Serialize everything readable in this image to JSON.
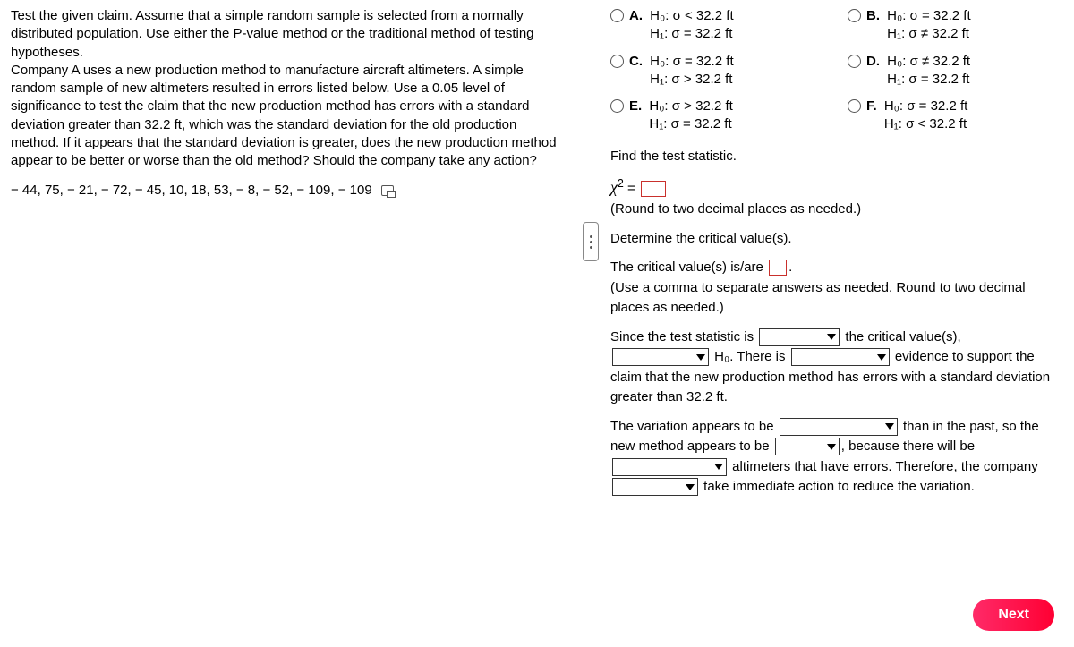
{
  "prompt": {
    "p1": "Test the given claim. Assume that a simple random sample is selected from a normally distributed population. Use either the P-value method or the traditional method of testing hypotheses.",
    "p2": "Company A uses a new production method to manufacture aircraft altimeters. A simple random sample of new altimeters resulted in errors listed below. Use a 0.05 level of significance to test the claim that the new production method has errors with a standard deviation greater than 32.2 ft, which was the standard deviation for the old production method. If it appears that the standard deviation is greater, does the new production method appear to be better or worse than the old method? Should the company take any action?",
    "data": "− 44,  75,  − 21,  − 72,  − 45,  10,  18,  53,  − 8,  − 52,  − 109,  − 109"
  },
  "options": {
    "A": {
      "h0": "H₀: σ < 32.2 ft",
      "h1": "H₁: σ = 32.2 ft"
    },
    "B": {
      "h0": "H₀: σ = 32.2 ft",
      "h1": "H₁: σ ≠ 32.2 ft"
    },
    "C": {
      "h0": "H₀: σ = 32.2 ft",
      "h1": "H₁: σ > 32.2 ft"
    },
    "D": {
      "h0": "H₀: σ ≠ 32.2 ft",
      "h1": "H₁: σ = 32.2 ft"
    },
    "E": {
      "h0": "H₀: σ > 32.2 ft",
      "h1": "H₁: σ = 32.2 ft"
    },
    "F": {
      "h0": "H₀: σ = 32.2 ft",
      "h1": "H₁: σ < 32.2 ft"
    }
  },
  "q": {
    "findStat": "Find the test statistic.",
    "chiLabel": "χ",
    "chiEq": " = ",
    "roundStat": "(Round to two decimal places as needed.)",
    "detCrit": "Determine the critical value(s).",
    "critLine1a": "The critical value(s) is/are ",
    "critLine1b": ".",
    "critNote": "(Use a comma to separate answers as needed. Round to two decimal places as needed.)",
    "conc1a": "Since the test statistic is ",
    "conc1b": " the critical value(s),",
    "conc2a": " H₀. There is ",
    "conc2b": " evidence to support the claim that the new production method has errors with a standard deviation greater than 32.2 ft.",
    "conc3a": "The variation appears to be ",
    "conc3b": " than in the past, so the new method appears to be ",
    "conc3c": ", because there will be ",
    "conc3d": " altimeters that have errors. Therefore, the company ",
    "conc3e": " take immediate action to reduce the variation."
  },
  "buttons": {
    "next": "Next"
  }
}
